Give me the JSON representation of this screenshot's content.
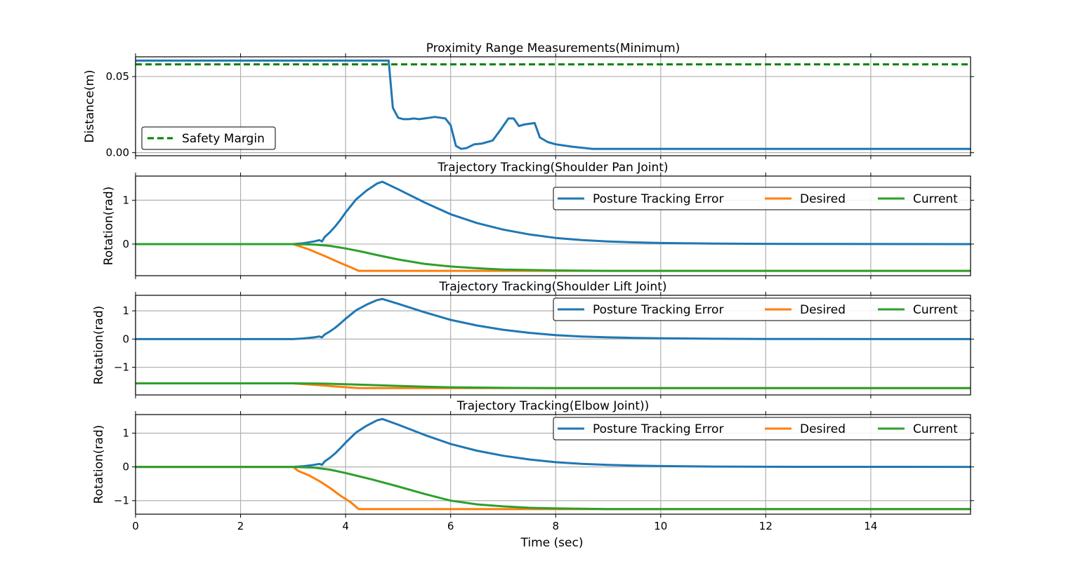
{
  "xlabel": "Time (sec)",
  "colors": {
    "error": "#1f77b4",
    "desired": "#ff7f0e",
    "current": "#2ca02c",
    "safety": "#008000",
    "grid": "#b0b0b0"
  },
  "chart_data": [
    {
      "type": "line",
      "title": "Proximity Range Measurements(Minimum)",
      "ylabel": "Distance(m)",
      "xlim": [
        0,
        15.9
      ],
      "ylim": [
        -0.002,
        0.063
      ],
      "xticks": [
        0,
        2,
        4,
        6,
        8,
        10,
        12,
        14
      ],
      "yticks": [
        0.0,
        0.05
      ],
      "ytick_labels": [
        "0.00",
        "0.05"
      ],
      "legend": "lower-left",
      "grid": true,
      "series": [
        {
          "key": "distance",
          "color_key": "error",
          "x": [
            0,
            4.82,
            4.9,
            5.0,
            5.1,
            5.2,
            5.3,
            5.4,
            5.5,
            5.6,
            5.7,
            5.8,
            5.9,
            6.0,
            6.1,
            6.2,
            6.3,
            6.45,
            6.6,
            6.8,
            6.95,
            7.1,
            7.2,
            7.3,
            7.4,
            7.6,
            7.7,
            7.85,
            8.0,
            8.3,
            8.7,
            15.9
          ],
          "y": [
            0.0605,
            0.0605,
            0.0295,
            0.023,
            0.022,
            0.022,
            0.0225,
            0.022,
            0.0225,
            0.023,
            0.0235,
            0.023,
            0.0225,
            0.018,
            0.0045,
            0.0025,
            0.003,
            0.0055,
            0.006,
            0.008,
            0.015,
            0.0225,
            0.0225,
            0.0175,
            0.0185,
            0.0195,
            0.01,
            0.007,
            0.0055,
            0.004,
            0.0025,
            0.0025
          ],
          "width": 3
        },
        {
          "key": "safety",
          "name": "Safety Margin",
          "color_key": "safety",
          "x": [
            0,
            15.9
          ],
          "y": [
            0.058,
            0.058
          ],
          "dashed": true,
          "width": 3
        }
      ]
    },
    {
      "type": "line",
      "title": "Trajectory Tracking(Shoulder Pan Joint)",
      "ylabel": "Rotation(rad)",
      "xlim": [
        0,
        15.9
      ],
      "ylim": [
        -0.72,
        1.55
      ],
      "xticks": [
        0,
        2,
        4,
        6,
        8,
        10,
        12,
        14
      ],
      "yticks": [
        0,
        1
      ],
      "ytick_labels": [
        "0",
        "1"
      ],
      "legend": "upper-right",
      "grid": true,
      "series": [
        {
          "key": "error",
          "name": "Posture Tracking Error",
          "color_key": "error",
          "x": [
            0,
            3.0,
            3.2,
            3.4,
            3.5,
            3.55,
            3.6,
            3.7,
            3.8,
            3.9,
            4.0,
            4.2,
            4.4,
            4.6,
            4.7,
            5.0,
            5.5,
            6.0,
            6.5,
            7.0,
            7.5,
            8.0,
            8.5,
            9.0,
            9.5,
            10.0,
            11.0,
            12.0,
            13.0,
            15.9
          ],
          "y": [
            0,
            0,
            0.02,
            0.06,
            0.09,
            0.06,
            0.16,
            0.27,
            0.4,
            0.55,
            0.72,
            1.02,
            1.22,
            1.38,
            1.42,
            1.25,
            0.95,
            0.68,
            0.48,
            0.33,
            0.22,
            0.14,
            0.09,
            0.06,
            0.04,
            0.025,
            0.01,
            0.005,
            0.002,
            0.0
          ],
          "width": 3
        },
        {
          "key": "desired",
          "name": "Desired",
          "color_key": "desired",
          "x": [
            0,
            3.0,
            3.3,
            3.6,
            3.9,
            4.1,
            4.25,
            15.9
          ],
          "y": [
            0,
            0,
            -0.12,
            -0.27,
            -0.43,
            -0.53,
            -0.61,
            -0.61
          ],
          "width": 3
        },
        {
          "key": "current",
          "name": "Current",
          "color_key": "current",
          "x": [
            0,
            3.0,
            3.4,
            3.7,
            4.0,
            4.3,
            4.6,
            5.0,
            5.5,
            6.0,
            6.5,
            7.0,
            7.5,
            8.0,
            9.0,
            10.0,
            15.9
          ],
          "y": [
            0,
            0,
            -0.01,
            -0.04,
            -0.1,
            -0.17,
            -0.25,
            -0.35,
            -0.45,
            -0.51,
            -0.55,
            -0.58,
            -0.59,
            -0.6,
            -0.61,
            -0.61,
            -0.61
          ],
          "width": 3
        }
      ]
    },
    {
      "type": "line",
      "title": "Trajectory Tracking(Shoulder Lift Joint)",
      "ylabel": "Rotation(rad)",
      "xlim": [
        0,
        15.9
      ],
      "ylim": [
        -1.98,
        1.55
      ],
      "xticks": [
        0,
        2,
        4,
        6,
        8,
        10,
        12,
        14
      ],
      "yticks": [
        -1,
        0,
        1
      ],
      "ytick_labels": [
        "−1",
        "0",
        "1"
      ],
      "legend": "upper-right",
      "grid": true,
      "series": [
        {
          "key": "error",
          "name": "Posture Tracking Error",
          "color_key": "error",
          "x": [
            0,
            3.0,
            3.2,
            3.4,
            3.5,
            3.55,
            3.6,
            3.7,
            3.8,
            3.9,
            4.0,
            4.2,
            4.4,
            4.6,
            4.7,
            5.0,
            5.5,
            6.0,
            6.5,
            7.0,
            7.5,
            8.0,
            8.5,
            9.0,
            9.5,
            10.0,
            11.0,
            12.0,
            13.0,
            15.9
          ],
          "y": [
            0,
            0,
            0.02,
            0.06,
            0.09,
            0.06,
            0.16,
            0.27,
            0.4,
            0.55,
            0.72,
            1.02,
            1.22,
            1.38,
            1.42,
            1.25,
            0.95,
            0.68,
            0.48,
            0.33,
            0.22,
            0.14,
            0.09,
            0.06,
            0.04,
            0.025,
            0.01,
            0.005,
            0.002,
            0.0
          ],
          "width": 3
        },
        {
          "key": "desired",
          "name": "Desired",
          "color_key": "desired",
          "x": [
            0,
            3.0,
            3.4,
            3.8,
            4.1,
            4.25,
            15.9
          ],
          "y": [
            -1.57,
            -1.57,
            -1.62,
            -1.68,
            -1.72,
            -1.74,
            -1.74
          ],
          "width": 3
        },
        {
          "key": "current",
          "name": "Current",
          "color_key": "current",
          "x": [
            0,
            3.0,
            3.6,
            4.0,
            4.5,
            5.0,
            5.5,
            6.0,
            7.0,
            8.0,
            15.9
          ],
          "y": [
            -1.57,
            -1.57,
            -1.58,
            -1.6,
            -1.63,
            -1.66,
            -1.69,
            -1.71,
            -1.73,
            -1.74,
            -1.74
          ],
          "width": 3
        }
      ]
    },
    {
      "type": "line",
      "title": "Trajectory Tracking(Elbow Joint))",
      "ylabel": "Rotation(rad)",
      "xlim": [
        0,
        15.9
      ],
      "ylim": [
        -1.4,
        1.55
      ],
      "xticks": [
        0,
        2,
        4,
        6,
        8,
        10,
        12,
        14
      ],
      "yticks": [
        -1,
        0,
        1
      ],
      "ytick_labels": [
        "−1",
        "0",
        "1"
      ],
      "legend": "upper-right",
      "grid": true,
      "series": [
        {
          "key": "error",
          "name": "Posture Tracking Error",
          "color_key": "error",
          "x": [
            0,
            3.0,
            3.2,
            3.4,
            3.5,
            3.55,
            3.6,
            3.7,
            3.8,
            3.9,
            4.0,
            4.2,
            4.4,
            4.6,
            4.7,
            5.0,
            5.5,
            6.0,
            6.5,
            7.0,
            7.5,
            8.0,
            8.5,
            9.0,
            9.5,
            10.0,
            11.0,
            12.0,
            13.0,
            15.9
          ],
          "y": [
            0,
            0,
            0.02,
            0.06,
            0.09,
            0.06,
            0.16,
            0.27,
            0.4,
            0.55,
            0.72,
            1.02,
            1.22,
            1.38,
            1.42,
            1.25,
            0.95,
            0.68,
            0.48,
            0.33,
            0.22,
            0.14,
            0.09,
            0.06,
            0.04,
            0.025,
            0.01,
            0.005,
            0.002,
            0.0
          ],
          "width": 3
        },
        {
          "key": "desired",
          "name": "Desired",
          "color_key": "desired",
          "x": [
            0,
            3.0,
            3.1,
            3.3,
            3.5,
            3.7,
            3.9,
            4.1,
            4.25,
            15.9
          ],
          "y": [
            0,
            0,
            -0.12,
            -0.25,
            -0.42,
            -0.62,
            -0.85,
            -1.05,
            -1.25,
            -1.25
          ],
          "width": 3
        },
        {
          "key": "current",
          "name": "Current",
          "color_key": "current",
          "x": [
            0,
            3.0,
            3.4,
            3.7,
            4.0,
            4.5,
            5.0,
            5.5,
            6.0,
            6.5,
            7.0,
            7.5,
            8.0,
            9.0,
            10.0,
            15.9
          ],
          "y": [
            0,
            0,
            -0.02,
            -0.08,
            -0.18,
            -0.37,
            -0.58,
            -0.8,
            -1.0,
            -1.11,
            -1.17,
            -1.21,
            -1.23,
            -1.25,
            -1.25,
            -1.25
          ],
          "width": 3
        }
      ]
    }
  ]
}
